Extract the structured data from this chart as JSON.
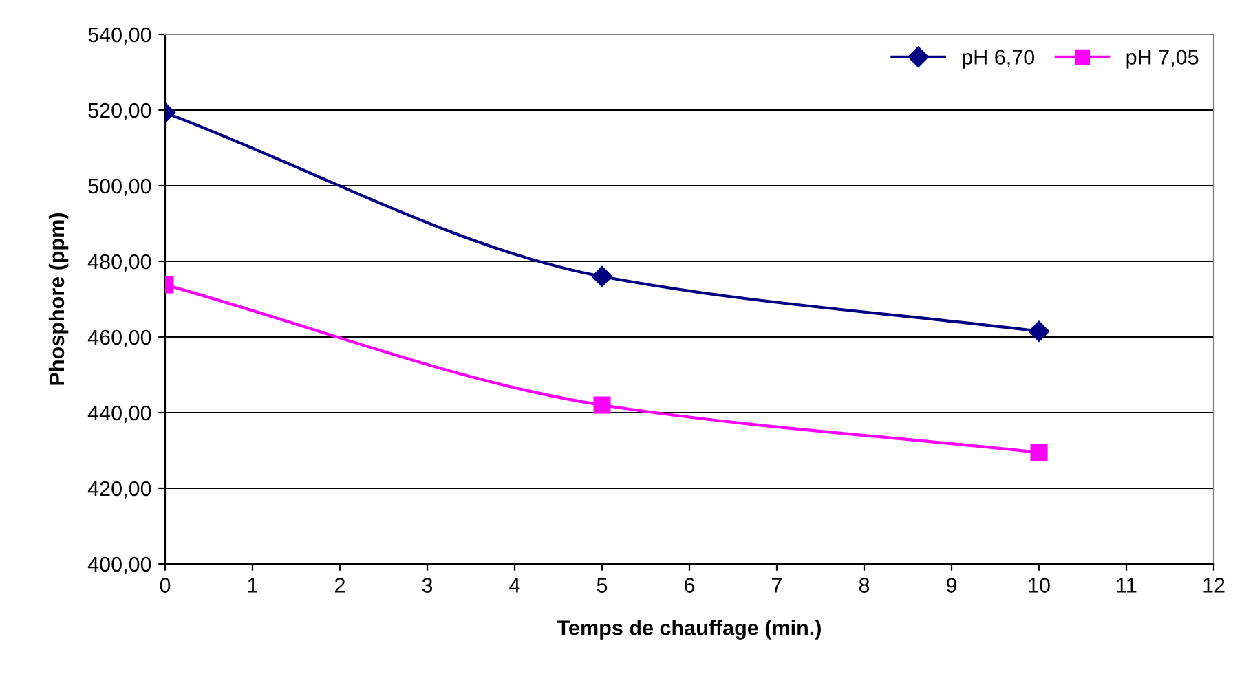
{
  "chart_data": {
    "type": "line",
    "xlabel": "Temps de chauffage (min.)",
    "ylabel": "Phosphore (ppm)",
    "x": [
      0,
      5,
      10
    ],
    "series": [
      {
        "name": "pH 6,70",
        "color": "#000080",
        "marker": "diamond",
        "values": [
          519.3,
          476,
          461.5
        ]
      },
      {
        "name": "pH 7,05",
        "color": "#ff00ff",
        "marker": "square",
        "values": [
          473.8,
          442,
          429.5
        ]
      }
    ],
    "xlim": [
      0,
      12
    ],
    "xticks": [
      0,
      1,
      2,
      3,
      4,
      5,
      6,
      7,
      8,
      9,
      10,
      11,
      12
    ],
    "ylim": [
      400,
      540
    ],
    "yticks": [
      {
        "value": 400,
        "label": "400,00"
      },
      {
        "value": 420,
        "label": "420,00"
      },
      {
        "value": 440,
        "label": "440,00"
      },
      {
        "value": 460,
        "label": "460,00"
      },
      {
        "value": 480,
        "label": "480,00"
      },
      {
        "value": 500,
        "label": "500,00"
      },
      {
        "value": 520,
        "label": "520,00"
      },
      {
        "value": 540,
        "label": "540,00"
      }
    ],
    "grid": "y",
    "legend": "top right",
    "line_style": "solid"
  }
}
